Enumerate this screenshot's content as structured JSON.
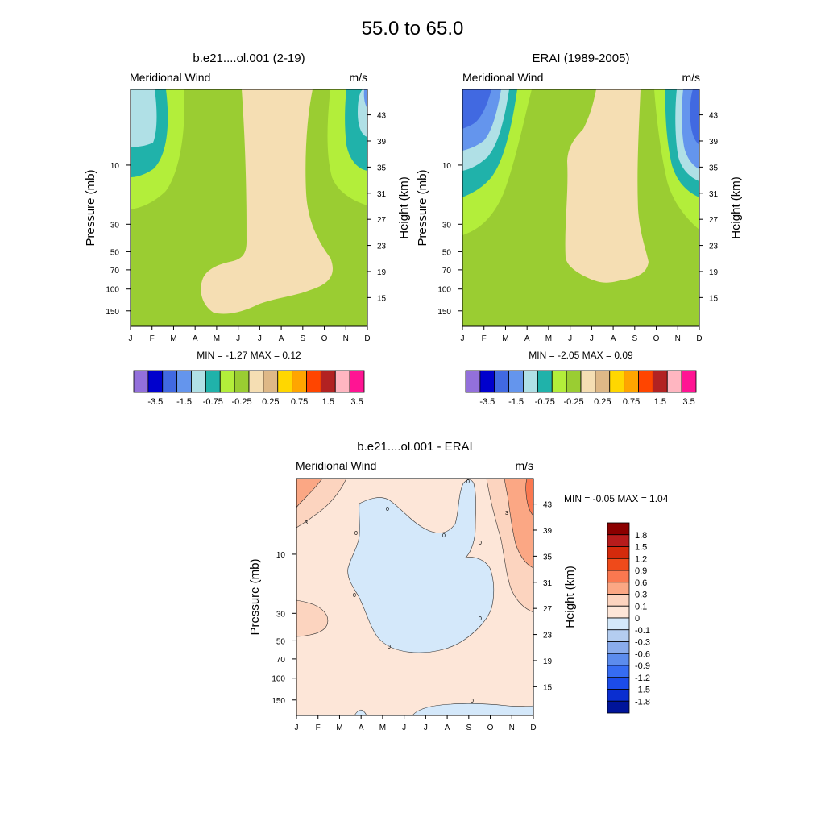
{
  "figure": {
    "title": "55.0 to  65.0"
  },
  "colors": {
    "levels": [
      "#9370db",
      "#0000cd",
      "#4169e1",
      "#6495ed",
      "#b0e0e6",
      "#20b2aa",
      "#b3ee3a",
      "#9acd32",
      "#f5deb3",
      "#deb887",
      "#ffd700",
      "#ffa500",
      "#ff4500",
      "#b22222",
      "#ffb6c1",
      "#ff1493"
    ],
    "diff_levels": [
      "#8b0000",
      "#b71c1c",
      "#d42a0c",
      "#ef4a1a",
      "#fa7850",
      "#fba784",
      "#fcd4bf",
      "#fde6d8",
      "#d4e8fa",
      "#b4cdf0",
      "#8aacec",
      "#5c8ced",
      "#366cf2",
      "#1c4ce9",
      "#0a2ed0",
      "#00149a"
    ]
  },
  "chart_data": [
    {
      "id": "model",
      "type": "heatmap",
      "title": "b.e21....ol.001 (2-19)",
      "left_label": "Meridional Wind",
      "right_label": "m/s",
      "ylabel": "Pressure (mb)",
      "ylabel_right": "Height (km)",
      "x_ticks": [
        "J",
        "F",
        "M",
        "A",
        "M",
        "J",
        "J",
        "A",
        "S",
        "O",
        "N",
        "D"
      ],
      "pressure_ticks": [
        "10",
        "30",
        "50",
        "70",
        "100",
        "150"
      ],
      "height_ticks": [
        "43",
        "39",
        "35",
        "31",
        "27",
        "23",
        "19",
        "15"
      ],
      "min_label": "MIN =  -1.27  MAX =   0.12",
      "min": -1.27,
      "max": 0.12,
      "colorbar_labels": [
        "-3.5",
        "-1.5",
        "-0.75",
        "-0.25",
        "0.25",
        "0.75",
        "1.5",
        "3.5"
      ]
    },
    {
      "id": "obs",
      "type": "heatmap",
      "title": "ERAI (1989-2005)",
      "left_label": "Meridional Wind",
      "right_label": "m/s",
      "ylabel": "Pressure (mb)",
      "ylabel_right": "Height (km)",
      "x_ticks": [
        "J",
        "F",
        "M",
        "A",
        "M",
        "J",
        "J",
        "A",
        "S",
        "O",
        "N",
        "D"
      ],
      "pressure_ticks": [
        "10",
        "30",
        "50",
        "70",
        "100",
        "150"
      ],
      "height_ticks": [
        "43",
        "39",
        "35",
        "31",
        "27",
        "23",
        "19",
        "15"
      ],
      "min_label": "MIN =  -2.05  MAX =   0.09",
      "min": -2.05,
      "max": 0.09,
      "colorbar_labels": [
        "-3.5",
        "-1.5",
        "-0.75",
        "-0.25",
        "0.25",
        "0.75",
        "1.5",
        "3.5"
      ]
    },
    {
      "id": "diff",
      "type": "heatmap",
      "title": "b.e21....ol.001 - ERAI",
      "left_label": "Meridional Wind",
      "right_label": "m/s",
      "ylabel": "Pressure (mb)",
      "ylabel_right": "Height (km)",
      "x_ticks": [
        "J",
        "F",
        "M",
        "A",
        "M",
        "J",
        "J",
        "A",
        "S",
        "O",
        "N",
        "D"
      ],
      "pressure_ticks": [
        "10",
        "30",
        "50",
        "70",
        "100",
        "150"
      ],
      "height_ticks": [
        "43",
        "39",
        "35",
        "31",
        "27",
        "23",
        "19",
        "15"
      ],
      "min_label": "MIN =  -0.05  MAX =   1.04",
      "min": -0.05,
      "max": 1.04,
      "colorbar_labels": [
        "1.8",
        "1.5",
        "1.2",
        "0.9",
        "0.6",
        "0.3",
        "0.1",
        "0",
        "-0.1",
        "-0.3",
        "-0.6",
        "-0.9",
        "-1.2",
        "-1.5",
        "-1.8"
      ],
      "contour_labels": [
        "0",
        "0",
        "0",
        "0",
        "0",
        "0",
        "0",
        "0",
        "0",
        "3",
        "3"
      ]
    }
  ]
}
